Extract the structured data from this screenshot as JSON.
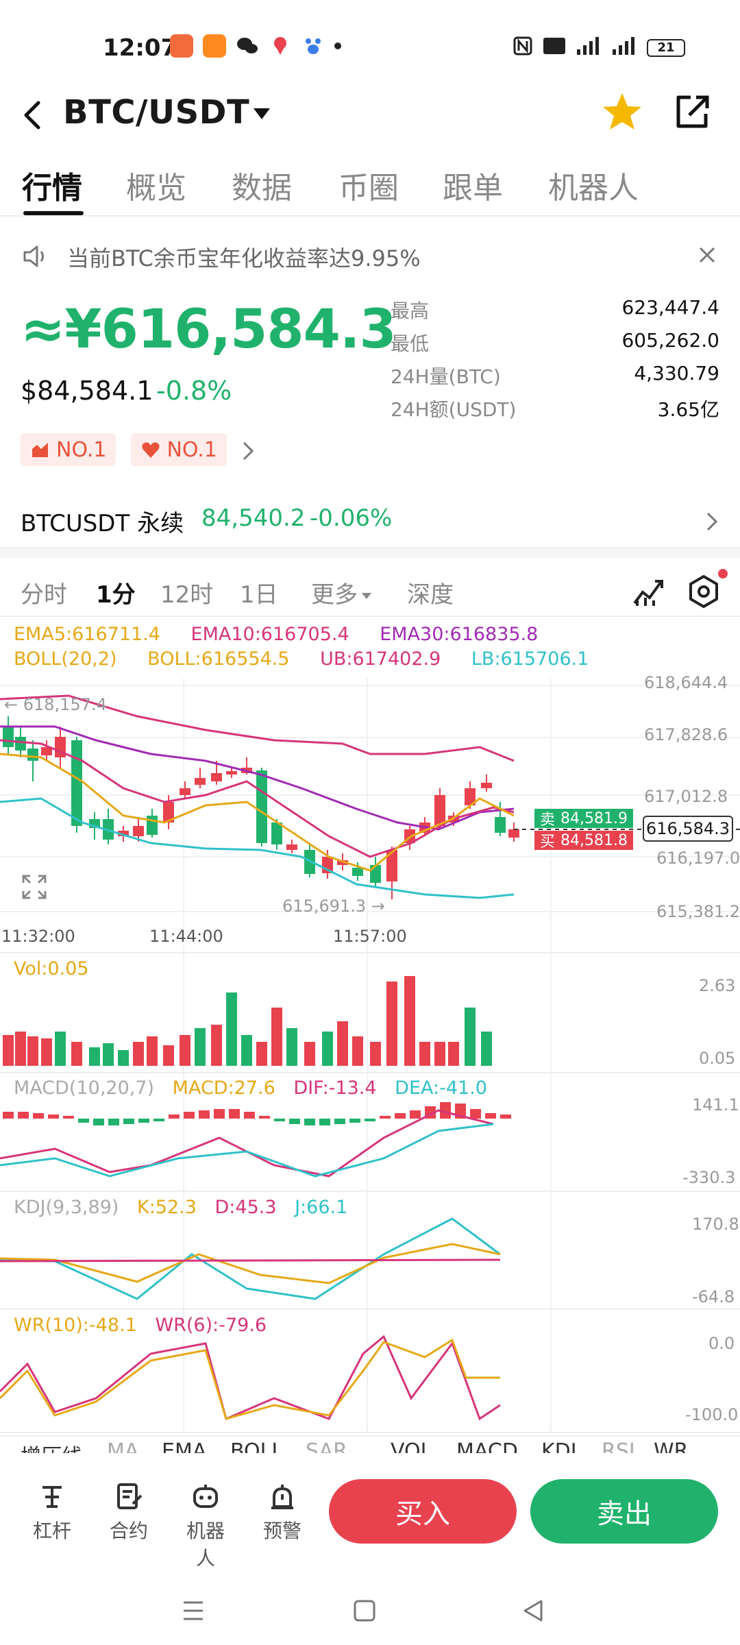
{
  "status_bar": {
    "time": "12:07",
    "battery": "21"
  },
  "header": {
    "title": "BTC/USDT"
  },
  "tabs": [
    {
      "label": "行情"
    },
    {
      "label": "概览"
    },
    {
      "label": "数据"
    },
    {
      "label": "币圈"
    },
    {
      "label": "跟单"
    },
    {
      "label": "机器人"
    }
  ],
  "notice": {
    "text": "当前BTC余币宝年化收益率达9.95%"
  },
  "price": {
    "cny": "≈¥616,584.3",
    "usd": "$84,584.1",
    "change": "-0.8%",
    "badges": [
      {
        "label": "NO.1",
        "icon": "chart-icon"
      },
      {
        "label": "NO.1",
        "icon": "heart-icon"
      }
    ]
  },
  "stats": [
    {
      "label": "最高",
      "value": "623,447.4"
    },
    {
      "label": "最低",
      "value": "605,262.0"
    },
    {
      "label": "24H量(BTC)",
      "value": "4,330.79"
    },
    {
      "label": "24H额(USDT)",
      "value": "3.65亿"
    }
  ],
  "perpetual": {
    "name": "BTCUSDT 永续",
    "price": "84,540.2",
    "change": "-0.06%"
  },
  "timeframes": [
    {
      "label": "分时"
    },
    {
      "label": "1分"
    },
    {
      "label": "12时"
    },
    {
      "label": "1日"
    },
    {
      "label": "更多"
    },
    {
      "label": "深度"
    }
  ],
  "main_chart": {
    "ema_legend": {
      "ema5": "EMA5:616711.4",
      "ema10": "EMA10:616705.4",
      "ema30": "EMA30:616835.8"
    },
    "boll_legend": {
      "boll_params": "BOLL(20,2)",
      "boll": "BOLL:616554.5",
      "ub": "UB:617402.9",
      "lb": "LB:615706.1"
    },
    "y_axis": [
      "618,644.4",
      "617,828.6",
      "617,012.8",
      "616,197.0",
      "615,381.2"
    ],
    "x_axis": [
      "11:32:00",
      "11:44:00",
      "11:57:00"
    ],
    "high_marker": "← 618,157.4",
    "low_marker": "615,691.3 →",
    "ask": {
      "label": "卖",
      "value": "84,581.9"
    },
    "bid": {
      "label": "买",
      "value": "84,581.8"
    },
    "last_price_tag": "616,584.3"
  },
  "vol": {
    "legend": "Vol:0.05",
    "y_axis": [
      "2.63",
      "0.05"
    ]
  },
  "macd": {
    "params": "MACD(10,20,7)",
    "macd": "MACD:27.6",
    "dif": "DIF:-13.4",
    "dea": "DEA:-41.0",
    "y_axis": [
      "141.1",
      "-330.3"
    ]
  },
  "kdj": {
    "params": "KDJ(9,3,89)",
    "k": "K:52.3",
    "d": "D:45.3",
    "j": "J:66.1",
    "y_axis": [
      "170.8",
      "-64.8"
    ]
  },
  "wr": {
    "wr10": "WR(10):-48.1",
    "wr6": "WR(6):-79.6",
    "y_axis": [
      "0.0",
      "-100.0"
    ]
  },
  "indicator_strip": [
    "增压线",
    "MA",
    "EMA",
    "BOLL",
    "SAR",
    "VOL",
    "MACD",
    "KDJ",
    "RSI",
    "WR"
  ],
  "bottom_actions": [
    {
      "label": "杠杆",
      "icon": "leverage-icon"
    },
    {
      "label": "合约",
      "icon": "contract-icon"
    },
    {
      "label": "机器人",
      "icon": "robot-icon"
    },
    {
      "label": "预警",
      "icon": "alarm-icon"
    }
  ],
  "buy_label": "买入",
  "sell_label": "卖出",
  "colors": {
    "up": "#e8424f",
    "down": "#20b26c",
    "ema5": "#e6a817",
    "ema10": "#d6347a",
    "ema30": "#a12ab3",
    "lb": "#2fc1c9"
  }
}
